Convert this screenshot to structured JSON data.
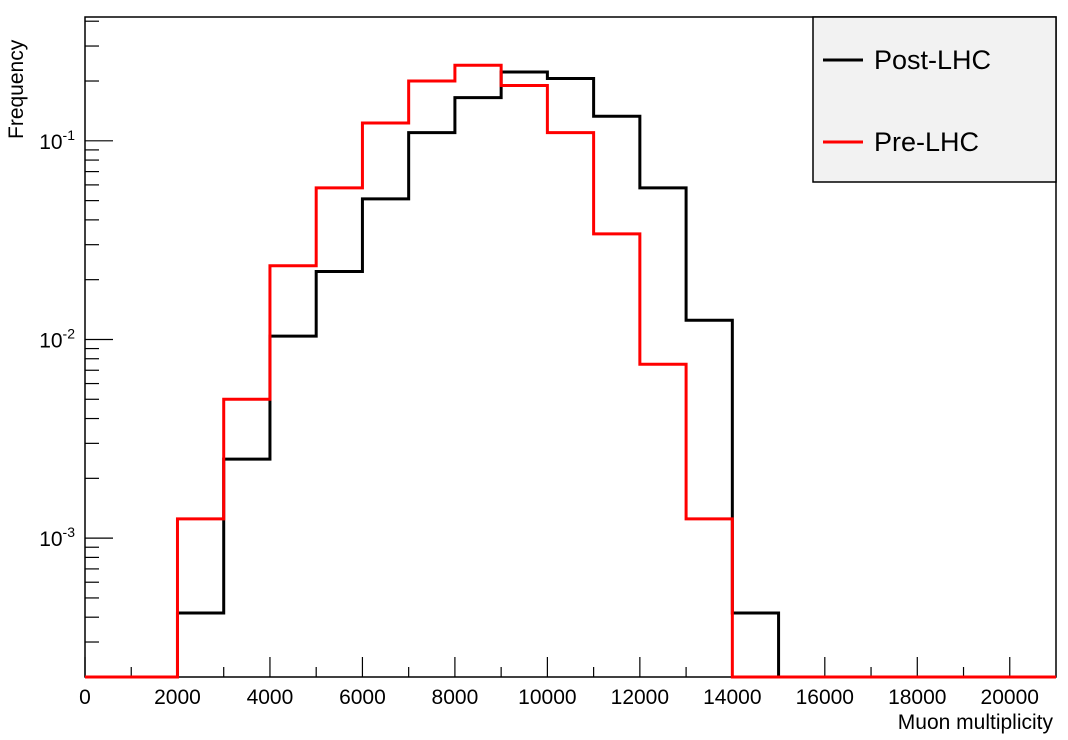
{
  "chart_data": {
    "type": "histogram",
    "xlabel": "Muon multiplicity",
    "ylabel": "Frequency",
    "xlim": [
      0,
      21000
    ],
    "ylim": [
      0.0002,
      0.42
    ],
    "yscale": "log",
    "grid": false,
    "legend_position": "top-right",
    "x_ticks": [
      {
        "value": 0,
        "label": "0"
      },
      {
        "value": 2000,
        "label": "2000"
      },
      {
        "value": 4000,
        "label": "4000"
      },
      {
        "value": 6000,
        "label": "6000"
      },
      {
        "value": 8000,
        "label": "8000"
      },
      {
        "value": 10000,
        "label": "10000"
      },
      {
        "value": 12000,
        "label": "12000"
      },
      {
        "value": 14000,
        "label": "14000"
      },
      {
        "value": 16000,
        "label": "16000"
      },
      {
        "value": 18000,
        "label": "18000"
      },
      {
        "value": 20000,
        "label": "20000"
      }
    ],
    "y_ticks": [
      {
        "value": 0.001,
        "base": "10",
        "exp": "-3"
      },
      {
        "value": 0.01,
        "base": "10",
        "exp": "-2"
      },
      {
        "value": 0.1,
        "base": "10",
        "exp": "-1"
      }
    ],
    "bin_edges": [
      0,
      1000,
      2000,
      3000,
      4000,
      5000,
      6000,
      7000,
      8000,
      9000,
      10000,
      11000,
      12000,
      13000,
      14000,
      15000,
      16000,
      17000,
      18000,
      19000,
      20000,
      21000
    ],
    "series": [
      {
        "name": "Post-LHC",
        "color": "#000000",
        "values": [
          0,
          0,
          0.00042,
          0.0025,
          0.0104,
          0.022,
          0.051,
          0.11,
          0.165,
          0.222,
          0.206,
          0.133,
          0.058,
          0.0125,
          0.00042,
          0,
          0,
          0,
          0,
          0,
          0
        ]
      },
      {
        "name": "Pre-LHC",
        "color": "#ff0000",
        "values": [
          0,
          0,
          0.00125,
          0.005,
          0.0235,
          0.058,
          0.123,
          0.2,
          0.24,
          0.19,
          0.11,
          0.034,
          0.0075,
          0.00125,
          0,
          0,
          0,
          0,
          0,
          0,
          0
        ]
      }
    ]
  }
}
